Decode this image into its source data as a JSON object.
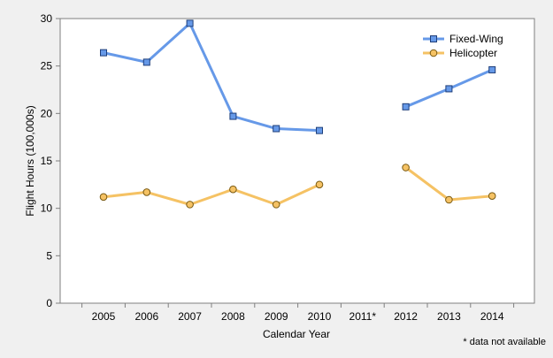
{
  "chart_data": {
    "type": "line",
    "categories": [
      "2005",
      "2006",
      "2007",
      "2008",
      "2009",
      "2010",
      "2011*",
      "2012",
      "2013",
      "2014"
    ],
    "series": [
      {
        "name": "Fixed-Wing",
        "color": "#6699e8",
        "marker": "square",
        "values": [
          26.4,
          25.4,
          29.5,
          19.7,
          18.4,
          18.2,
          null,
          20.7,
          22.6,
          24.6
        ]
      },
      {
        "name": "Helicopter",
        "color": "#f5c264",
        "marker": "circle",
        "values": [
          11.2,
          11.7,
          10.4,
          12.0,
          10.4,
          12.5,
          null,
          14.3,
          10.9,
          11.3
        ]
      }
    ],
    "xlabel": "Calendar Year",
    "ylabel": "Flight Hours (100,000s)",
    "ylim": [
      0,
      30
    ],
    "yticks": [
      "0",
      "5",
      "10",
      "15",
      "20",
      "25",
      "30"
    ],
    "grid": false,
    "legend_position": "top-right",
    "footnote": "* data not available"
  }
}
